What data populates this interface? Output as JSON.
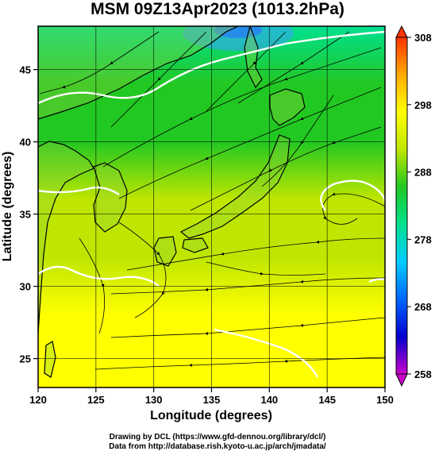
{
  "title": "MSM 09Z13Apr2023 (1013.2hPa)",
  "x_axis": {
    "label": "Longitude (degrees)",
    "min": 120,
    "max": 150,
    "ticks": [
      120,
      125,
      130,
      135,
      140,
      145,
      150
    ],
    "tick_labels": [
      "120",
      "125",
      "130",
      "135",
      "140",
      "145",
      "150"
    ]
  },
  "y_axis": {
    "label": "Latitude  (degrees)",
    "min": 23,
    "max": 48,
    "ticks": [
      25,
      30,
      35,
      40,
      45
    ],
    "tick_labels": [
      "25",
      "30",
      "35",
      "40",
      "45"
    ]
  },
  "colorbar": {
    "min": 258,
    "max": 308,
    "ticks": [
      258,
      268,
      278,
      288,
      298,
      308
    ],
    "tick_labels": [
      "258",
      "268",
      "278",
      "288",
      "298",
      "308"
    ],
    "colors": [
      "#cc00cc",
      "#0000cc",
      "#0066ff",
      "#00ccff",
      "#00e090",
      "#22c822",
      "#bfe600",
      "#ffff00",
      "#ffaa00",
      "#ff3300"
    ]
  },
  "field": {
    "type": "temperature",
    "unit": "K",
    "gradient_stops": [
      {
        "lat": 48,
        "value": 281
      },
      {
        "lat": 44,
        "value": 283
      },
      {
        "lat": 40,
        "value": 286
      },
      {
        "lat": 36,
        "value": 288
      },
      {
        "lat": 32,
        "value": 290
      },
      {
        "lat": 28,
        "value": 293
      },
      {
        "lat": 24,
        "value": 296
      },
      {
        "lat": 23,
        "value": 297
      }
    ]
  },
  "credits": {
    "line1": "Drawing by DCL (https://www.gfd-dennou.org/library/dcl/)",
    "line2": "Data from http://database.rish.kyoto-u.ac.jp/arch/jmadata/"
  },
  "colors": {
    "frame": "#000000",
    "coastline": "#000000",
    "streamline": "#000000",
    "contour": "#ffffff"
  }
}
